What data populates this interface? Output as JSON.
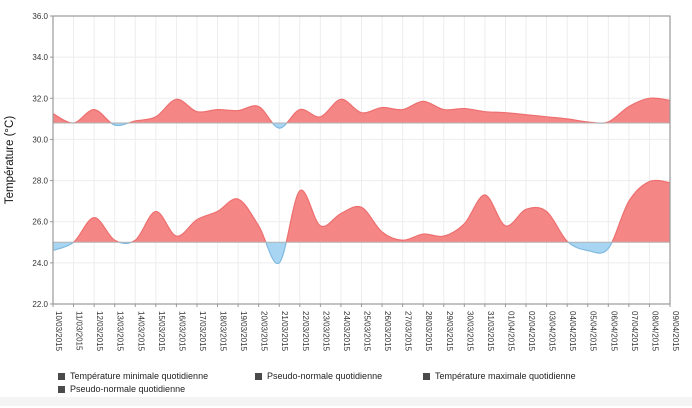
{
  "chart_data": {
    "type": "area",
    "title": "",
    "xlabel": "",
    "ylabel": "Température (°C)",
    "ylim": [
      22.0,
      36.0
    ],
    "ytick_step": 2.0,
    "grid": true,
    "legend_position": "bottom",
    "categories": [
      "10/03/2015",
      "11/03/2015",
      "12/03/2015",
      "13/03/2015",
      "14/03/2015",
      "15/03/2015",
      "16/03/2015",
      "17/03/2015",
      "18/03/2015",
      "19/03/2015",
      "20/03/2015",
      "21/03/2015",
      "22/03/2015",
      "23/03/2015",
      "24/03/2015",
      "25/03/2015",
      "26/03/2015",
      "27/03/2015",
      "28/03/2015",
      "29/03/2015",
      "30/03/2015",
      "31/03/2015",
      "01/04/2015",
      "02/04/2015",
      "03/04/2015",
      "04/04/2015",
      "05/04/2015",
      "06/04/2015",
      "07/04/2015",
      "08/04/2015",
      "09/04/2015"
    ],
    "series": [
      {
        "name": "Température maximale quotidienne",
        "role": "max-temperature",
        "normal_role": "max-pseudo-normal",
        "values": [
          31.25,
          30.8,
          31.45,
          30.7,
          30.9,
          31.1,
          31.95,
          31.35,
          31.45,
          31.4,
          31.6,
          30.55,
          31.45,
          31.1,
          31.95,
          31.3,
          31.55,
          31.45,
          31.85,
          31.45,
          31.5,
          31.35,
          31.3,
          31.2,
          31.1,
          31.0,
          30.85,
          30.85,
          31.6,
          32.0,
          31.9
        ]
      },
      {
        "name": "Pseudo-normale quotidienne",
        "role": "max-pseudo-normal",
        "values": [
          30.8,
          30.8,
          30.8,
          30.8,
          30.8,
          30.8,
          30.8,
          30.8,
          30.8,
          30.8,
          30.8,
          30.8,
          30.8,
          30.8,
          30.8,
          30.8,
          30.8,
          30.8,
          30.8,
          30.8,
          30.8,
          30.8,
          30.8,
          30.8,
          30.8,
          30.8,
          30.8,
          30.8,
          30.8,
          30.8,
          30.8
        ]
      },
      {
        "name": "Température minimale quotidienne",
        "role": "min-temperature",
        "normal_role": "min-pseudo-normal",
        "values": [
          24.6,
          25.0,
          26.2,
          25.1,
          25.1,
          26.5,
          25.3,
          26.1,
          26.5,
          27.1,
          25.8,
          24.0,
          27.5,
          25.8,
          26.4,
          26.7,
          25.5,
          25.1,
          25.4,
          25.3,
          25.9,
          27.3,
          25.8,
          26.6,
          26.5,
          25.05,
          24.6,
          24.7,
          27.0,
          27.95,
          27.9
        ]
      },
      {
        "name": "Pseudo-normale quotidienne",
        "role": "min-pseudo-normal",
        "values": [
          25.0,
          25.0,
          25.0,
          25.0,
          25.0,
          25.0,
          25.0,
          25.0,
          25.0,
          25.0,
          25.0,
          25.0,
          25.0,
          25.0,
          25.0,
          25.0,
          25.0,
          25.0,
          25.0,
          25.0,
          25.0,
          25.0,
          25.0,
          25.0,
          25.0,
          25.0,
          25.0,
          25.0,
          25.0,
          25.0,
          25.0
        ]
      }
    ],
    "colors": {
      "above_normal_fill": "#f58686",
      "above_normal_line": "#ee6f6f",
      "below_normal_fill": "#a8d6f2",
      "below_normal_line": "#7fb9e0",
      "normal_line": "#b3b3b3",
      "plot_border": "#999999",
      "gridline": "#ededed",
      "axis_text": "#333333",
      "legend_swatch": "#4a4a4a"
    },
    "legend": [
      {
        "label": "Température minimale quotidienne"
      },
      {
        "label": "Pseudo-normale quotidienne"
      },
      {
        "label": "Température maximale quotidienne"
      },
      {
        "label": "Pseudo-normale quotidienne"
      }
    ]
  }
}
